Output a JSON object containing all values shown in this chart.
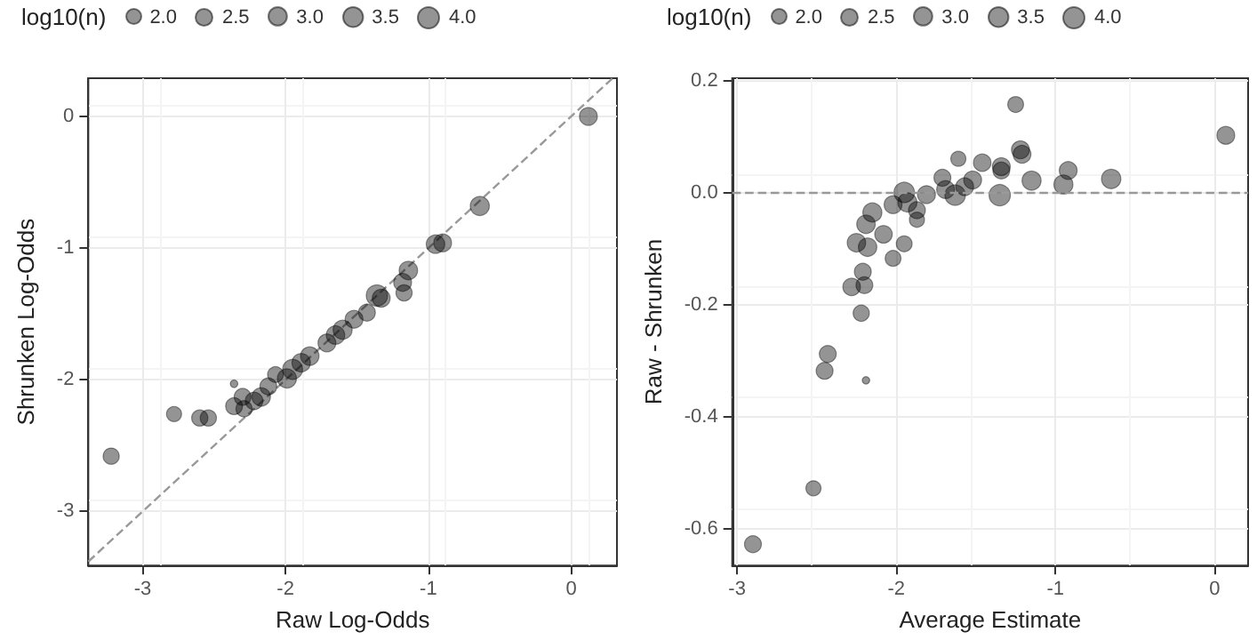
{
  "chart_data": [
    {
      "type": "bubble",
      "xlabel": "Raw Log-Odds",
      "ylabel": "Shrunken Log-Odds",
      "xlim": [
        -3.38,
        0.32
      ],
      "ylim": [
        -3.41,
        0.29
      ],
      "xticks": [
        -3,
        -2,
        -1,
        0
      ],
      "yticks": [
        -3,
        -2,
        -1,
        0
      ],
      "grid": true,
      "legend_title": "log10(n)",
      "size_legend": [
        {
          "value": 2,
          "label": "2.0"
        },
        {
          "value": 2.5,
          "label": "2.5"
        },
        {
          "value": 3,
          "label": "3.0"
        },
        {
          "value": 3.5,
          "label": "3.5"
        },
        {
          "value": 4,
          "label": "4.0"
        }
      ],
      "series": [
        {
          "color": "#000000",
          "x": [
            0.12,
            -0.64,
            -0.95,
            -0.9,
            -1.14,
            -1.18,
            -1.17,
            -1.36,
            -1.33,
            -1.43,
            -1.52,
            -1.6,
            -1.65,
            -1.71,
            -1.83,
            -1.89,
            -1.95,
            -1.99,
            -2.07,
            -2.12,
            -2.17,
            -2.22,
            -2.3,
            -2.36,
            -2.29,
            -2.36,
            -2.54,
            -2.6,
            -2.78,
            -3.22
          ],
          "values": [
            0.0,
            -0.68,
            -0.97,
            -0.96,
            -1.17,
            -1.26,
            -1.34,
            -1.36,
            -1.38,
            -1.49,
            -1.54,
            -1.62,
            -1.66,
            -1.72,
            -1.82,
            -1.87,
            -1.92,
            -1.99,
            -1.96,
            -2.05,
            -2.13,
            -2.16,
            -2.13,
            -2.2,
            -2.22,
            -2.03,
            -2.29,
            -2.29,
            -2.26,
            -2.58
          ],
          "sizes": [
            2.8,
            3.2,
            3.0,
            2.8,
            3.0,
            2.8,
            2.3,
            4.0,
            2.8,
            2.5,
            2.8,
            3.2,
            3.0,
            2.8,
            3.0,
            3.0,
            3.5,
            3.2,
            2.2,
            2.5,
            3.0,
            2.7,
            2.5,
            2.5,
            2.3,
            0.5,
            2.3,
            2.3,
            2.0,
            2.3
          ]
        },
        {
          "type": "line",
          "color": "#999999",
          "line_style": "dashed",
          "x": [
            -3.38,
            0.29
          ],
          "values": [
            -3.38,
            0.29
          ]
        }
      ]
    },
    {
      "type": "bubble",
      "xlabel": "Average Estimate",
      "ylabel": "Raw - Shrunken",
      "xlim": [
        -3.03,
        0.21
      ],
      "ylim": [
        -0.666,
        0.205
      ],
      "xticks": [
        -3,
        -2,
        -1,
        0
      ],
      "yticks": [
        -0.6,
        -0.4,
        -0.2,
        {
          "value": 0,
          "label": "0.0"
        },
        0.2
      ],
      "grid": true,
      "legend_title": "log10(n)",
      "size_legend": [
        {
          "value": 2,
          "label": "2.0"
        },
        {
          "value": 2.5,
          "label": "2.5"
        },
        {
          "value": 3,
          "label": "3.0"
        },
        {
          "value": 3.5,
          "label": "3.5"
        },
        {
          "value": 4,
          "label": "4.0"
        }
      ],
      "ref_lines": [
        {
          "axis": "y",
          "value": 0,
          "color": "#999999",
          "line_style": "dashed"
        }
      ],
      "series": [
        {
          "color": "#000000",
          "x": [
            0.07,
            -1.25,
            -1.22,
            -1.21,
            -1.61,
            -1.46,
            -1.34,
            -1.34,
            -0.92,
            -0.95,
            -1.15,
            -0.65,
            -1.35,
            -1.63,
            -1.52,
            -1.57,
            -1.71,
            -1.69,
            -1.81,
            -1.95,
            -1.93,
            -2.02,
            -1.87,
            -1.87,
            -2.15,
            -2.19,
            -2.08,
            -2.25,
            -2.18,
            -1.95,
            -2.02,
            -2.21,
            -2.28,
            -2.2,
            -2.22,
            -2.43,
            -2.45,
            -2.19,
            -2.52,
            -2.9
          ],
          "values": [
            0.103,
            0.158,
            0.077,
            0.069,
            0.061,
            0.054,
            0.047,
            0.04,
            0.04,
            0.015,
            0.022,
            0.025,
            -0.004,
            -0.004,
            0.023,
            0.011,
            0.027,
            0.006,
            -0.003,
            0.001,
            -0.017,
            -0.021,
            -0.031,
            -0.048,
            -0.035,
            -0.056,
            -0.074,
            -0.089,
            -0.097,
            -0.091,
            -0.117,
            -0.141,
            -0.168,
            -0.165,
            -0.215,
            -0.288,
            -0.318,
            -0.335,
            -0.528,
            -0.628
          ],
          "sizes": [
            2.8,
            2.2,
            2.8,
            2.8,
            2.0,
            2.7,
            2.8,
            2.5,
            2.8,
            3.2,
            3.2,
            3.3,
            4.0,
            3.7,
            2.8,
            2.8,
            2.5,
            2.8,
            2.8,
            3.7,
            3.2,
            2.8,
            2.5,
            2.0,
            3.2,
            3.0,
            2.7,
            3.0,
            3.0,
            2.2,
            2.2,
            2.5,
            2.7,
            2.5,
            2.3,
            2.5,
            2.5,
            0.5,
            2.0,
            2.5
          ]
        }
      ]
    }
  ]
}
